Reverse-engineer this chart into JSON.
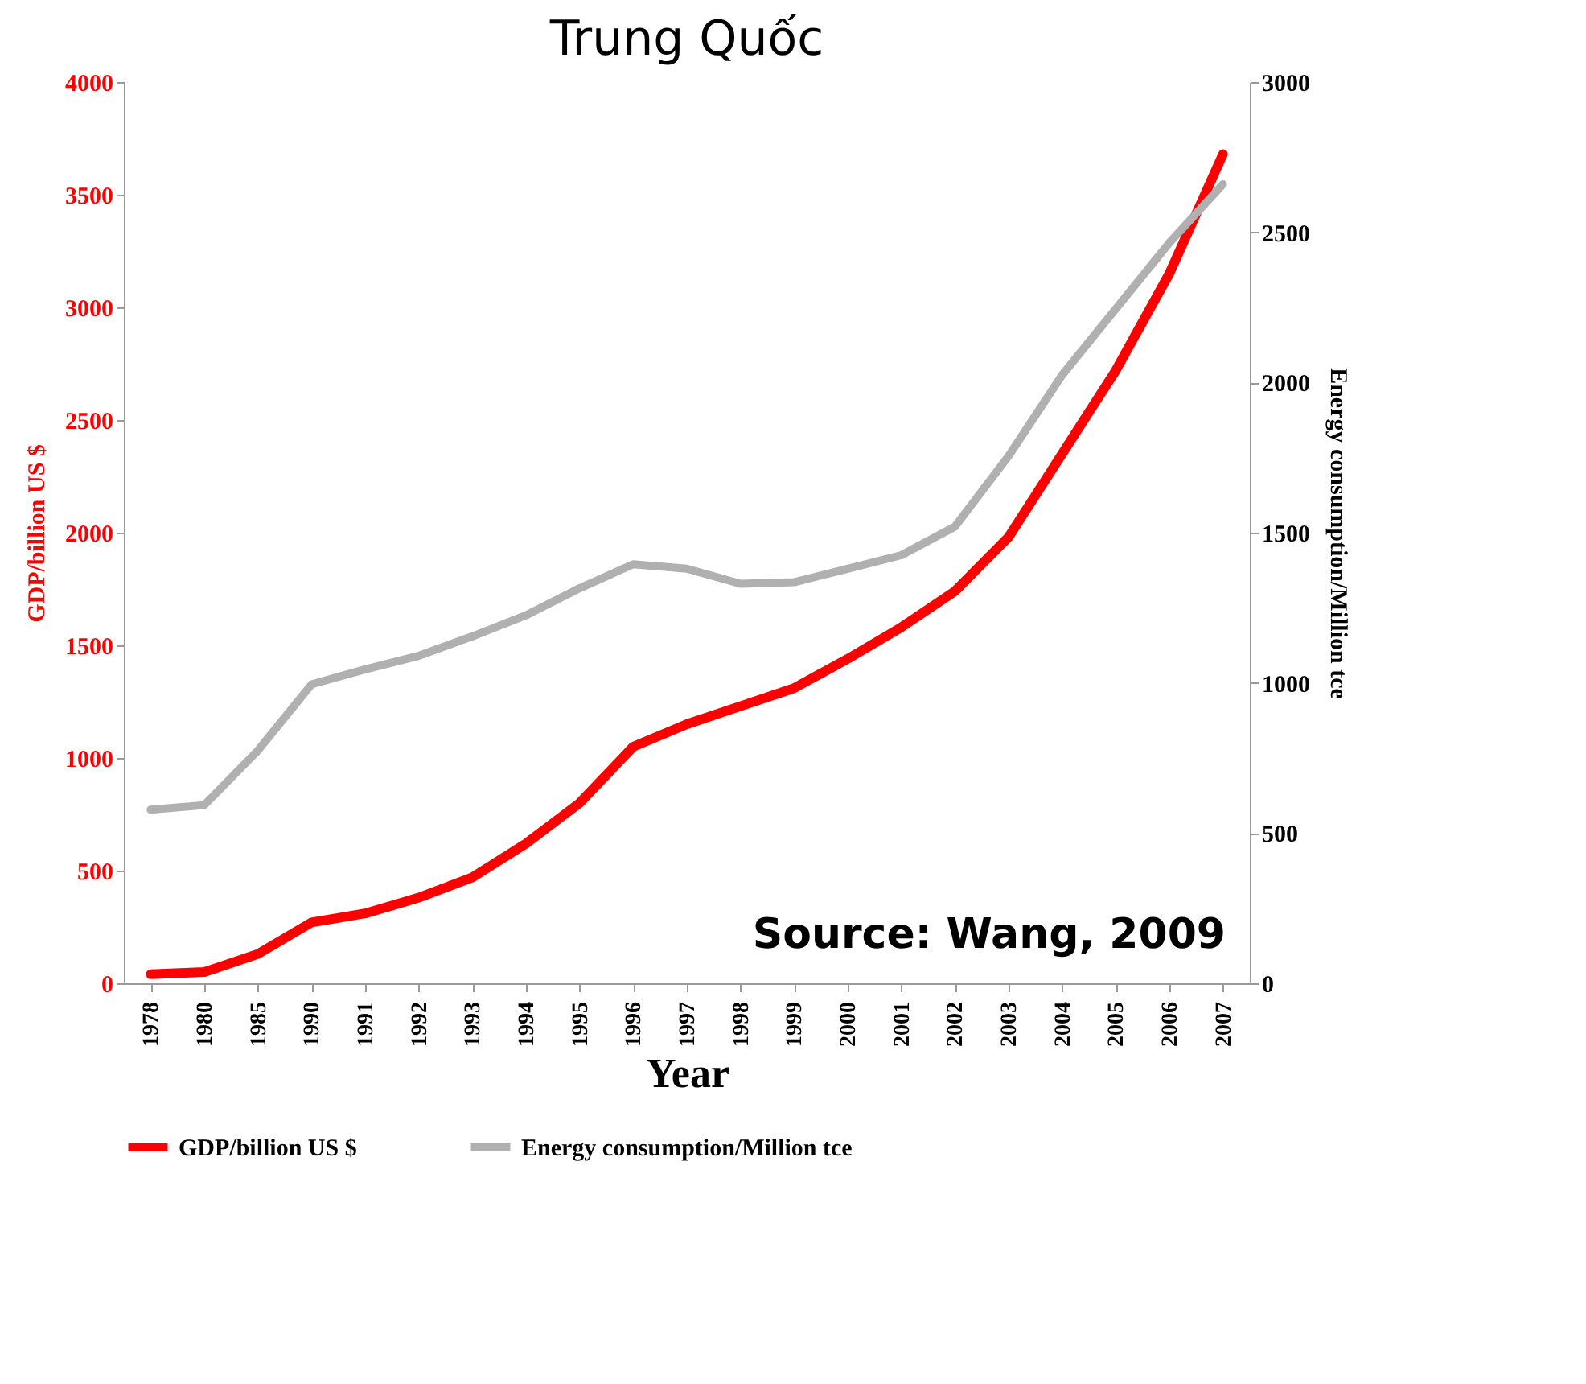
{
  "chart_data": {
    "type": "line",
    "title": "Trung Quốc",
    "xlabel": "Year",
    "ylabel": "GDP/billion US $",
    "y2label": "Energy consumption/Million tce",
    "categories": [
      "1978",
      "1980",
      "1985",
      "1990",
      "1991",
      "1992",
      "1993",
      "1994",
      "1995",
      "1996",
      "1997",
      "1998",
      "1999",
      "2000",
      "2001",
      "2002",
      "2003",
      "2004",
      "2005",
      "2006",
      "2007"
    ],
    "series": [
      {
        "name": "GDP/billion US $",
        "color": "#ff0000",
        "values": [
          40,
          50,
          130,
          270,
          310,
          380,
          470,
          620,
          800,
          1050,
          1150,
          1230,
          1310,
          1440,
          1580,
          1740,
          1980,
          2350,
          2720,
          3150,
          3680
        ]
      },
      {
        "name": "Energy consumption/Million tce",
        "color": "#b0b0b0",
        "axis": "y2",
        "values": [
          578,
          593,
          775,
          995,
          1045,
          1090,
          1155,
          1225,
          1315,
          1395,
          1380,
          1330,
          1335,
          1380,
          1425,
          1520,
          1755,
          2025,
          2245,
          2465,
          2660
        ]
      }
    ],
    "ylim": [
      0,
      4000
    ],
    "yticks": [
      0,
      500,
      1000,
      1500,
      2000,
      2500,
      3000,
      3500,
      4000
    ],
    "y2lim": [
      0,
      3000
    ],
    "y2ticks": [
      0,
      500,
      1000,
      1500,
      2000,
      2500,
      3000
    ],
    "annotations": [
      "Source: Wang, 2009"
    ],
    "legend": "bottom",
    "grid": false,
    "marker": "none",
    "line_style": "solid"
  }
}
